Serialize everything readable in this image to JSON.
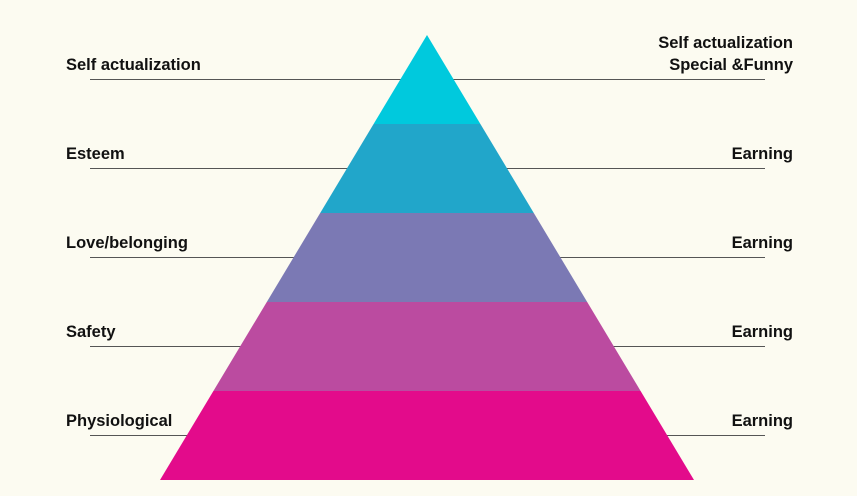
{
  "levels": [
    {
      "left": "Self actualization",
      "right": [
        "Self actualization",
        "Special &Funny"
      ]
    },
    {
      "left": "Esteem",
      "right": [
        "Earning"
      ]
    },
    {
      "left": "Love/belonging",
      "right": [
        "Earning"
      ]
    },
    {
      "left": "Safety",
      "right": [
        "Earning"
      ]
    },
    {
      "left": "Physiological",
      "right": [
        "Earning"
      ]
    }
  ]
}
